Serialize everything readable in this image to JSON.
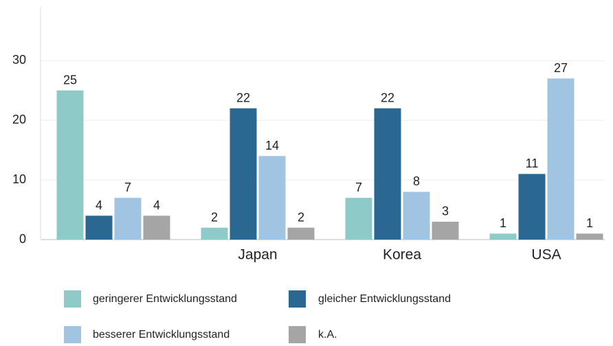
{
  "chart_data": {
    "type": "bar",
    "categories": [
      null,
      "Japan",
      "Korea",
      "USA"
    ],
    "series": [
      {
        "name": "geringerer Entwicklungsstand",
        "color": "#8ecbc8",
        "values": [
          25,
          2,
          7,
          1
        ]
      },
      {
        "name": "gleicher Entwicklungsstand",
        "color": "#2a6791",
        "values": [
          4,
          22,
          22,
          11
        ]
      },
      {
        "name": "besserer Entwicklungsstand",
        "color": "#a0c4e2",
        "values": [
          7,
          14,
          8,
          27
        ]
      },
      {
        "name": "k.A.",
        "color": "#a5a5a5",
        "values": [
          4,
          2,
          3,
          1
        ]
      }
    ],
    "ylim": [
      0,
      39
    ],
    "yticks": [
      0,
      10,
      20,
      30
    ],
    "grid": true
  }
}
